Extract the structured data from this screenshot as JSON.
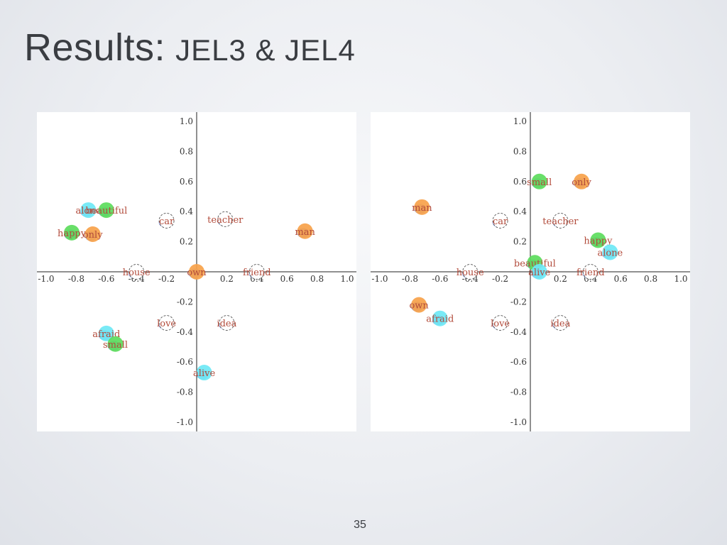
{
  "slide": {
    "title_main": "Results:",
    "title_sub": "JEL3 & JEL4",
    "page_number": "35"
  },
  "colors": {
    "green": "#5cdc5c",
    "orange": "#f7a24a",
    "cyan": "#6ee8f5",
    "white": "#ffffff",
    "shadow": "#6f86d8",
    "label": "#b24b3b",
    "axis": "#222222"
  },
  "chart_data": [
    {
      "type": "scatter",
      "name": "JEL3",
      "title": "",
      "xlabel": "",
      "ylabel": "",
      "xlim": [
        -1.05,
        1.05
      ],
      "ylim": [
        -1.05,
        1.05
      ],
      "x_ticks": [
        "-1.0",
        "-0.8",
        "-0.6",
        "-0.4",
        "-0.2",
        "0.2",
        "0.4",
        "0.6",
        "0.8",
        "1.0"
      ],
      "y_ticks": [
        "1.0",
        "0.8",
        "0.6",
        "0.4",
        "0.2",
        "-0.2",
        "-0.4",
        "-0.6",
        "-0.8",
        "-1.0"
      ],
      "grid": false,
      "points": [
        {
          "label": "alone",
          "x": -0.72,
          "y": 0.41,
          "color": "cyan"
        },
        {
          "label": "beautiful",
          "x": -0.6,
          "y": 0.41,
          "color": "green"
        },
        {
          "label": "happy",
          "x": -0.83,
          "y": 0.26,
          "color": "green"
        },
        {
          "label": "only",
          "x": -0.69,
          "y": 0.25,
          "color": "orange"
        },
        {
          "label": "car",
          "x": -0.2,
          "y": 0.34,
          "color": "white"
        },
        {
          "label": "teacher",
          "x": 0.19,
          "y": 0.35,
          "color": "white"
        },
        {
          "label": "man",
          "x": 0.72,
          "y": 0.27,
          "color": "orange"
        },
        {
          "label": "house",
          "x": -0.4,
          "y": 0.0,
          "color": "white"
        },
        {
          "label": "own",
          "x": 0.0,
          "y": 0.0,
          "color": "orange"
        },
        {
          "label": "friend",
          "x": 0.4,
          "y": 0.0,
          "color": "white"
        },
        {
          "label": "love",
          "x": -0.2,
          "y": -0.34,
          "color": "white"
        },
        {
          "label": "idea",
          "x": 0.2,
          "y": -0.34,
          "color": "white"
        },
        {
          "label": "afraid",
          "x": -0.6,
          "y": -0.41,
          "color": "cyan"
        },
        {
          "label": "small",
          "x": -0.54,
          "y": -0.48,
          "color": "green"
        },
        {
          "label": "alive",
          "x": 0.05,
          "y": -0.67,
          "color": "cyan"
        }
      ]
    },
    {
      "type": "scatter",
      "name": "JEL4",
      "title": "",
      "xlabel": "",
      "ylabel": "",
      "xlim": [
        -1.05,
        1.05
      ],
      "ylim": [
        -1.05,
        1.05
      ],
      "x_ticks": [
        "-1.0",
        "-0.8",
        "-0.6",
        "-0.4",
        "-0.2",
        "0.2",
        "0.4",
        "0.6",
        "0.8",
        "1.0"
      ],
      "y_ticks": [
        "1.0",
        "0.8",
        "0.6",
        "0.4",
        "0.2",
        "-0.2",
        "-0.4",
        "-0.6",
        "-0.8",
        "-1.0"
      ],
      "grid": false,
      "points": [
        {
          "label": "small",
          "x": 0.06,
          "y": 0.6,
          "color": "green"
        },
        {
          "label": "only",
          "x": 0.34,
          "y": 0.6,
          "color": "orange"
        },
        {
          "label": "man",
          "x": -0.72,
          "y": 0.43,
          "color": "orange"
        },
        {
          "label": "car",
          "x": -0.2,
          "y": 0.34,
          "color": "white"
        },
        {
          "label": "teacher",
          "x": 0.2,
          "y": 0.34,
          "color": "white"
        },
        {
          "label": "happy",
          "x": 0.45,
          "y": 0.21,
          "color": "green"
        },
        {
          "label": "alone",
          "x": 0.53,
          "y": 0.13,
          "color": "cyan"
        },
        {
          "label": "beautiful",
          "x": 0.03,
          "y": 0.06,
          "color": "green"
        },
        {
          "label": "alive",
          "x": 0.06,
          "y": 0.0,
          "color": "cyan"
        },
        {
          "label": "house",
          "x": -0.4,
          "y": 0.0,
          "color": "white"
        },
        {
          "label": "friend",
          "x": 0.4,
          "y": 0.0,
          "color": "white"
        },
        {
          "label": "own",
          "x": -0.74,
          "y": -0.22,
          "color": "orange"
        },
        {
          "label": "afraid",
          "x": -0.6,
          "y": -0.31,
          "color": "cyan"
        },
        {
          "label": "love",
          "x": -0.2,
          "y": -0.34,
          "color": "white"
        },
        {
          "label": "idea",
          "x": 0.2,
          "y": -0.34,
          "color": "white"
        }
      ]
    }
  ]
}
